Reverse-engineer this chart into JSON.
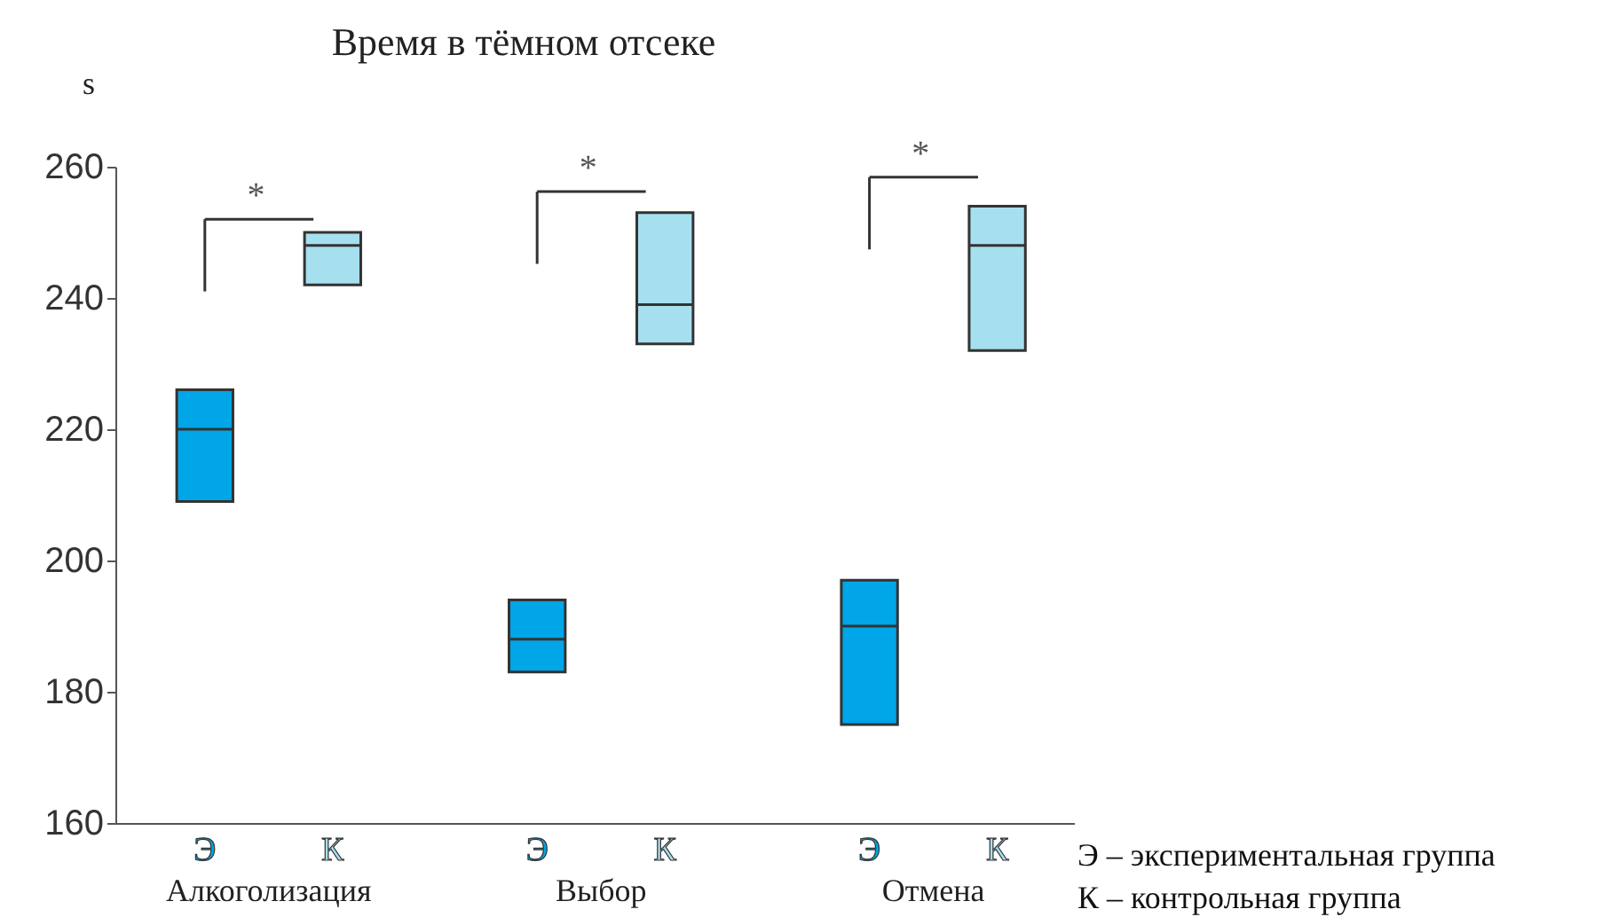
{
  "chart_data": {
    "type": "box",
    "title": "Время в тёмном отсеке",
    "ylabel": "s",
    "categories": [
      "Алкоголизация",
      "Выбор",
      "Отмена"
    ],
    "series": [
      {
        "name": "Э",
        "color": "#00a6e8",
        "boxes": [
          {
            "low": 209,
            "q1": 209,
            "median": 220,
            "q3": 226,
            "high": 226
          },
          {
            "low": 183,
            "q1": 183,
            "median": 188,
            "q3": 194,
            "high": 194
          },
          {
            "low": 175,
            "q1": 175,
            "median": 190,
            "q3": 197,
            "high": 197
          }
        ]
      },
      {
        "name": "К",
        "color": "#a6e0ef",
        "boxes": [
          {
            "low": 242,
            "q1": 242,
            "median": 248,
            "q3": 250,
            "high": 250
          },
          {
            "low": 233,
            "q1": 233,
            "median": 239,
            "q3": 253,
            "high": 253
          },
          {
            "low": 232,
            "q1": 232,
            "median": 248,
            "q3": 254,
            "high": 254
          }
        ]
      }
    ],
    "ylim": [
      160,
      260
    ],
    "yticks": [
      160,
      180,
      200,
      220,
      240,
      260
    ],
    "grid": false,
    "annotations": [
      "*",
      "*",
      "*",
      "Э – экспериментальная группа",
      "К – контрольная группа"
    ]
  }
}
